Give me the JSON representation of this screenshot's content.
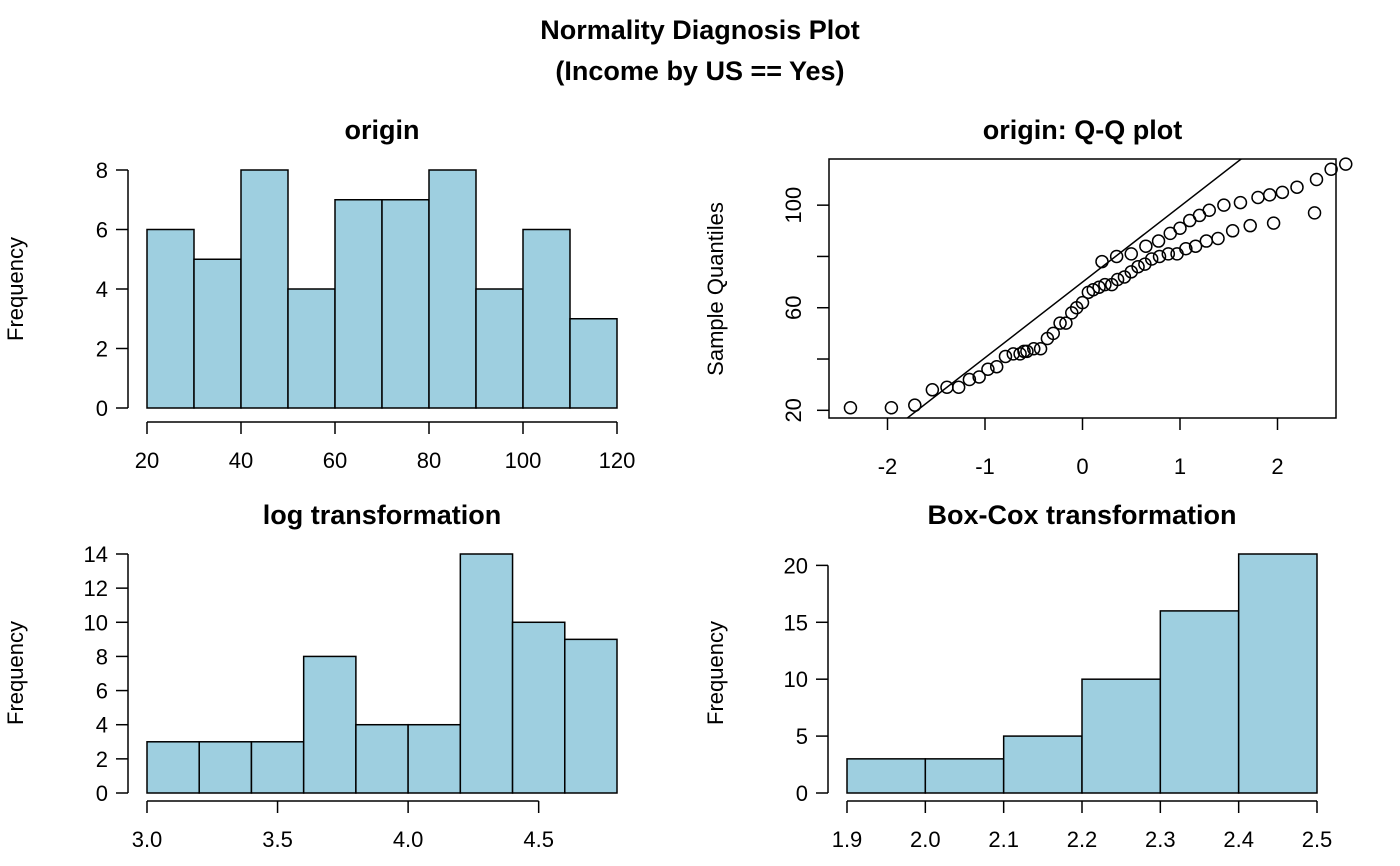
{
  "figure": {
    "title_line1": "Normality Diagnosis Plot",
    "title_line2": "(Income by US == Yes)"
  },
  "colors": {
    "bar_fill": "#9ecfe0",
    "stroke": "#000000"
  },
  "chart_data": [
    {
      "type": "bar",
      "title": "origin",
      "xlabel": "",
      "ylabel": "Frequency",
      "bins": [
        [
          20,
          30
        ],
        [
          30,
          40
        ],
        [
          40,
          50
        ],
        [
          50,
          60
        ],
        [
          60,
          70
        ],
        [
          70,
          80
        ],
        [
          80,
          90
        ],
        [
          90,
          100
        ],
        [
          100,
          110
        ],
        [
          110,
          120
        ]
      ],
      "values": [
        6,
        5,
        8,
        4,
        7,
        7,
        8,
        4,
        6,
        3
      ],
      "xlim": [
        20,
        120
      ],
      "ylim": [
        0,
        8
      ],
      "xticks": [
        20,
        40,
        60,
        80,
        100,
        120
      ],
      "xtick_labels": [
        "20",
        "40",
        "60",
        "80",
        "100",
        "120"
      ],
      "yticks": [
        0,
        2,
        4,
        6,
        8
      ],
      "ytick_labels": [
        "0",
        "2",
        "4",
        "6",
        "8"
      ]
    },
    {
      "type": "scatter",
      "title": "origin: Q-Q plot",
      "xlabel": "",
      "ylabel": "Sample Quantiles",
      "xlim": [
        -2.6,
        2.6
      ],
      "ylim": [
        17,
        118
      ],
      "xticks": [
        -2,
        -1,
        0,
        1,
        2
      ],
      "xtick_labels": [
        "-2",
        "-1",
        "0",
        "1",
        "2"
      ],
      "yticks": [
        20,
        60,
        100
      ],
      "ytick_labels": [
        "20",
        "60",
        "100"
      ],
      "reference_line": {
        "slope": 29.5,
        "intercept": 70
      },
      "points": [
        [
          -2.38,
          21
        ],
        [
          -1.96,
          21
        ],
        [
          -1.72,
          22
        ],
        [
          -1.54,
          28
        ],
        [
          -1.39,
          29
        ],
        [
          -1.27,
          29
        ],
        [
          -1.16,
          32
        ],
        [
          -1.06,
          33
        ],
        [
          -0.97,
          36
        ],
        [
          -0.88,
          37
        ],
        [
          -0.79,
          41
        ],
        [
          -0.71,
          42
        ],
        [
          -0.64,
          42
        ],
        [
          -0.57,
          43
        ],
        [
          -0.5,
          44
        ],
        [
          -0.43,
          44
        ],
        [
          -0.36,
          48
        ],
        [
          -0.3,
          50
        ],
        [
          -0.23,
          54
        ],
        [
          -0.17,
          54
        ],
        [
          -0.11,
          58
        ],
        [
          -0.06,
          60
        ],
        [
          0.0,
          62
        ],
        [
          0.06,
          66
        ],
        [
          0.11,
          67
        ],
        [
          0.17,
          68
        ],
        [
          0.23,
          69
        ],
        [
          0.3,
          69
        ],
        [
          0.36,
          71
        ],
        [
          0.43,
          72
        ],
        [
          0.5,
          74
        ],
        [
          0.57,
          76
        ],
        [
          0.64,
          77
        ],
        [
          0.71,
          79
        ],
        [
          0.79,
          80
        ],
        [
          0.88,
          81
        ],
        [
          0.97,
          81
        ],
        [
          1.06,
          83
        ],
        [
          1.16,
          84
        ],
        [
          1.27,
          86
        ],
        [
          1.39,
          87
        ],
        [
          1.54,
          90
        ],
        [
          1.72,
          92
        ],
        [
          1.96,
          93
        ],
        [
          2.38,
          97
        ],
        [
          -0.6,
          43
        ],
        [
          0.2,
          78
        ],
        [
          0.35,
          80
        ],
        [
          0.5,
          81
        ],
        [
          0.65,
          84
        ],
        [
          0.78,
          86
        ],
        [
          0.9,
          89
        ],
        [
          1.0,
          91
        ],
        [
          1.1,
          94
        ],
        [
          1.2,
          96
        ],
        [
          1.3,
          98
        ],
        [
          1.45,
          100
        ],
        [
          1.62,
          101
        ],
        [
          1.8,
          103
        ],
        [
          1.92,
          104
        ],
        [
          2.05,
          105
        ],
        [
          2.2,
          107
        ],
        [
          2.4,
          110
        ],
        [
          2.55,
          114
        ],
        [
          2.7,
          116
        ]
      ]
    },
    {
      "type": "bar",
      "title": "log transformation",
      "xlabel": "",
      "ylabel": "Frequency",
      "bins": [
        [
          3.0,
          3.2
        ],
        [
          3.2,
          3.4
        ],
        [
          3.4,
          3.6
        ],
        [
          3.6,
          3.8
        ],
        [
          3.8,
          4.0
        ],
        [
          4.0,
          4.2
        ],
        [
          4.2,
          4.4
        ],
        [
          4.4,
          4.6
        ],
        [
          4.6,
          4.8
        ]
      ],
      "values": [
        3,
        3,
        3,
        8,
        4,
        4,
        14,
        10,
        9
      ],
      "xlim": [
        3.0,
        4.8
      ],
      "ylim": [
        0,
        14
      ],
      "xticks": [
        3.0,
        3.5,
        4.0,
        4.5
      ],
      "xtick_labels": [
        "3.0",
        "3.5",
        "4.0",
        "4.5"
      ],
      "yticks": [
        0,
        2,
        4,
        6,
        8,
        10,
        12,
        14
      ],
      "ytick_labels": [
        "0",
        "2",
        "4",
        "6",
        "8",
        "10",
        "12",
        "14"
      ]
    },
    {
      "type": "bar",
      "title": "Box-Cox transformation",
      "xlabel": "",
      "ylabel": "Frequency",
      "bins": [
        [
          1.9,
          2.0
        ],
        [
          2.0,
          2.1
        ],
        [
          2.1,
          2.2
        ],
        [
          2.2,
          2.3
        ],
        [
          2.3,
          2.4
        ],
        [
          2.4,
          2.5
        ]
      ],
      "values": [
        3,
        3,
        5,
        10,
        16,
        21
      ],
      "xlim": [
        1.9,
        2.5
      ],
      "ylim": [
        0,
        21
      ],
      "xticks": [
        1.9,
        2.0,
        2.1,
        2.2,
        2.3,
        2.4,
        2.5
      ],
      "xtick_labels": [
        "1.9",
        "2.0",
        "2.1",
        "2.2",
        "2.3",
        "2.4",
        "2.5"
      ],
      "yticks": [
        0,
        5,
        10,
        15,
        20
      ],
      "ytick_labels": [
        "0",
        "5",
        "10",
        "15",
        "20"
      ]
    }
  ]
}
